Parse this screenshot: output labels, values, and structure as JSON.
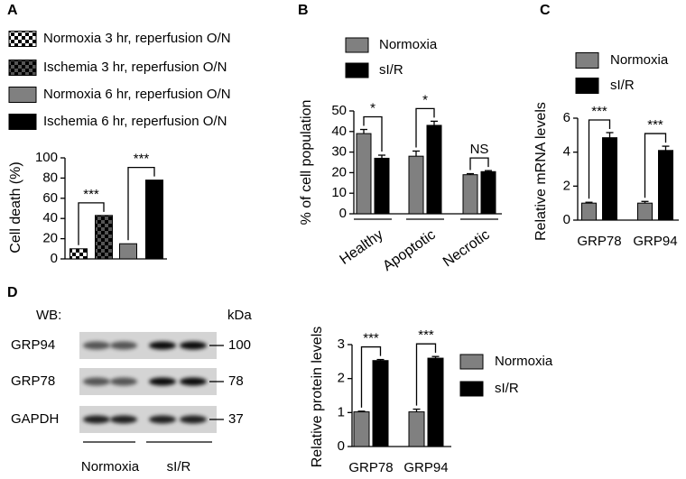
{
  "panel_labels": [
    "A",
    "B",
    "C",
    "D"
  ],
  "chart_data": [
    {
      "type": "bar",
      "y_label": "Cell death (%)",
      "categories": [
        null,
        null,
        null,
        null
      ],
      "values": [
        10,
        43,
        15,
        78
      ],
      "colors": [
        "#ffffff",
        "#555555",
        "#808080",
        "#000000"
      ],
      "patterns": [
        "checker",
        "checker",
        null,
        null
      ],
      "legend": [
        "Normoxia 3 hr, reperfusion O/N",
        "Ischemia 3 hr, reperfusion O/N",
        "Normoxia 6 hr, reperfusion O/N",
        "Ischemia 6 hr, reperfusion O/N"
      ],
      "ylim": [
        0,
        100
      ],
      "yticks": [
        0,
        20,
        40,
        60,
        80,
        100
      ],
      "annotations": [
        "***",
        "***"
      ]
    },
    {
      "type": "bar",
      "y_label": "% of cell population",
      "categories": [
        "Healthy",
        "Apoptotic",
        "Necrotic"
      ],
      "series": [
        {
          "name": "Normoxia",
          "color": "#808080",
          "values": [
            39,
            28,
            19
          ],
          "errors": [
            2,
            2.5,
            0.5
          ]
        },
        {
          "name": "sI/R",
          "color": "#000000",
          "values": [
            27,
            43,
            20.5
          ],
          "errors": [
            1.5,
            2,
            0.5
          ]
        }
      ],
      "ylim": [
        0,
        50
      ],
      "yticks": [
        0,
        10,
        20,
        30,
        40,
        50
      ],
      "annotations": [
        "*",
        "*",
        "NS"
      ]
    },
    {
      "type": "bar",
      "y_label": "Relative mRNA levels",
      "categories": [
        "GRP78",
        "GRP94"
      ],
      "series": [
        {
          "name": "Normoxia",
          "color": "#808080",
          "values": [
            1,
            1
          ],
          "errors": [
            0.05,
            0.1
          ]
        },
        {
          "name": "sI/R",
          "color": "#000000",
          "values": [
            4.85,
            4.1
          ],
          "errors": [
            0.3,
            0.25
          ]
        }
      ],
      "ylim": [
        0,
        6
      ],
      "yticks": [
        0,
        2,
        4,
        6
      ],
      "annotations": [
        "***",
        "***"
      ]
    },
    {
      "type": "bar",
      "y_label": "Relative protein levels",
      "categories": [
        "GRP78",
        "GRP94"
      ],
      "series": [
        {
          "name": "Normoxia",
          "color": "#808080",
          "values": [
            1.02,
            1.02
          ],
          "errors": [
            0.02,
            0.08
          ]
        },
        {
          "name": "sI/R",
          "color": "#000000",
          "values": [
            2.53,
            2.6
          ],
          "errors": [
            0.03,
            0.05
          ]
        }
      ],
      "ylim": [
        0,
        3
      ],
      "yticks": [
        0,
        1,
        2,
        3
      ],
      "annotations": [
        "***",
        "***"
      ]
    }
  ],
  "blot": {
    "header": "WB:",
    "unit": "kDa",
    "rows": [
      {
        "label": "GRP94",
        "size": "100"
      },
      {
        "label": "GRP78",
        "size": "78"
      },
      {
        "label": "GAPDH",
        "size": "37"
      }
    ],
    "groups": [
      "Normoxia",
      "sI/R"
    ]
  }
}
